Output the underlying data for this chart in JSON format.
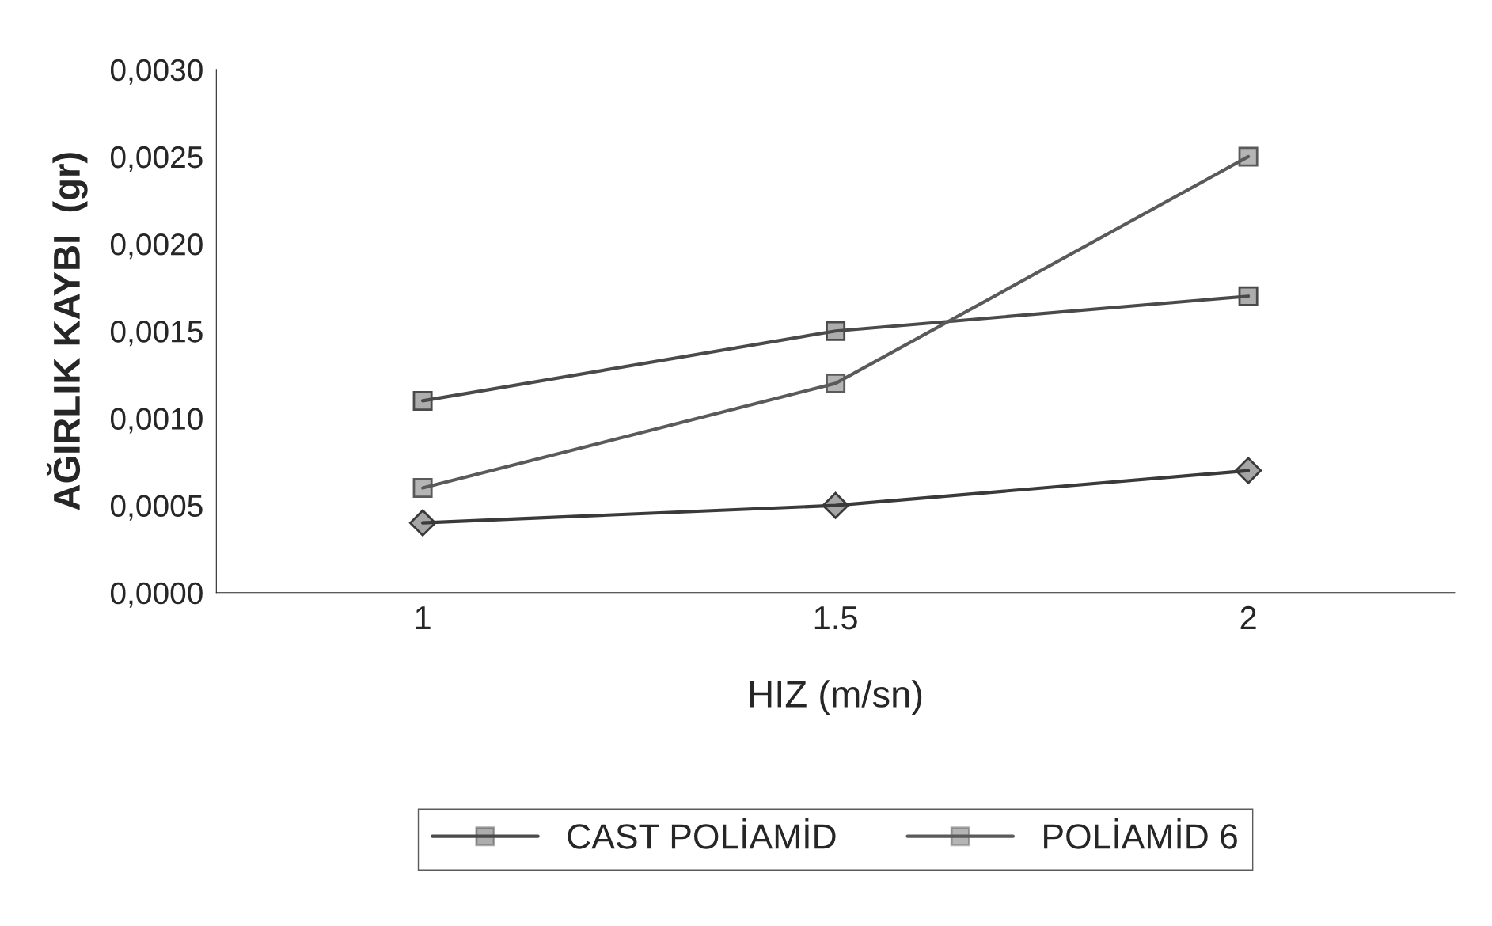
{
  "chart_data": {
    "type": "line",
    "xlabel": "HIZ (m/sn)",
    "ylabel": "AĞIRLIK KAYBI  (gr)",
    "categories": [
      "1",
      "1.5",
      "2"
    ],
    "series": [
      {
        "color": "#3a3a3a",
        "marker": "diamond",
        "values": [
          0.0004,
          0.0005,
          0.0007
        ]
      },
      {
        "name": "CAST POLİAMİD",
        "color": "#4a4a4a",
        "marker": "square",
        "values": [
          0.0011,
          0.0015,
          0.0017
        ]
      },
      {
        "name": "POLİAMİD 6",
        "color": "#5a5a5a",
        "marker": "square",
        "values": [
          0.0006,
          0.0012,
          0.0025
        ]
      }
    ],
    "ylim": [
      0,
      0.003
    ],
    "yticks": [
      {
        "value": 0,
        "label": "0,0000"
      },
      {
        "value": 0.0005,
        "label": "0,0005"
      },
      {
        "value": 0.001,
        "label": "0,0010"
      },
      {
        "value": 0.0015,
        "label": "0,0015"
      },
      {
        "value": 0.002,
        "label": "0,0020"
      },
      {
        "value": 0.0025,
        "label": "0,0025"
      },
      {
        "value": 0.003,
        "label": "0,0030"
      }
    ],
    "grid": false,
    "legend": "bottom"
  }
}
